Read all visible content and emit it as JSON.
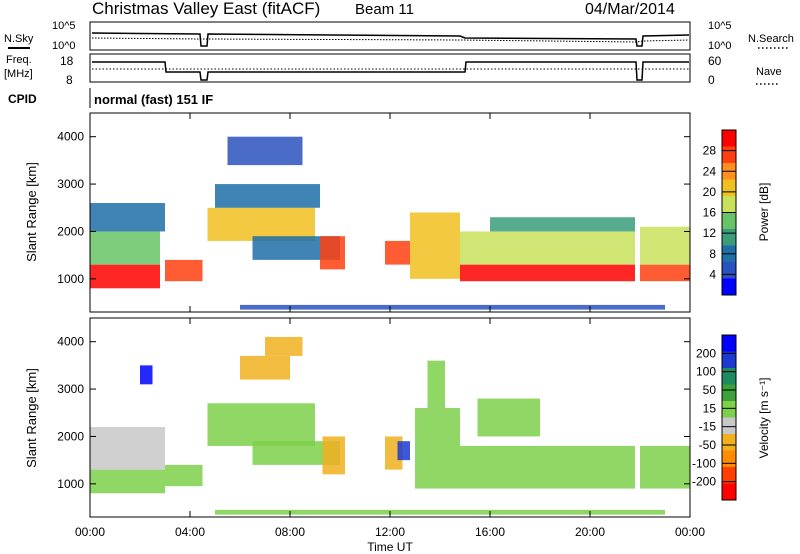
{
  "header": {
    "station": "Christmas Valley East (fitACF)",
    "beam": "Beam 11",
    "date": "04/Mar/2014"
  },
  "noise_panel": {
    "left_label": "N.Sky",
    "right_label": "N.Search",
    "left_ticks": [
      "10^5",
      "10^0"
    ],
    "right_ticks": [
      "10^5",
      "10^0"
    ]
  },
  "freq_panel": {
    "left_label_1": "Freq.",
    "left_label_2": "[MHz]",
    "right_label": "Nave",
    "left_ticks": [
      "18",
      "8"
    ],
    "right_ticks": [
      "60",
      "0"
    ]
  },
  "cpid": {
    "label": "CPID",
    "value": "normal (fast) 151 IF"
  },
  "colors": {
    "power_scale": [
      "#0000ff",
      "#2a52be",
      "#1e6fa8",
      "#3a9c7a",
      "#66c466",
      "#c8e05a",
      "#f0c020",
      "#ff9020",
      "#ff4010",
      "#ff0000"
    ],
    "velocity_scale": [
      "#0000ff",
      "#1a3ad0",
      "#1e8a60",
      "#3ca03c",
      "#7cd04a",
      "#c8c8c8",
      "#f0b020",
      "#ff8c00",
      "#ff4000",
      "#ff0000"
    ]
  },
  "chart_data": [
    {
      "type": "heatmap",
      "panel": "power",
      "ylabel": "Slant Range [km]",
      "xlabel": "Time UT",
      "x_ticks": [
        "00:00",
        "04:00",
        "08:00",
        "12:00",
        "16:00",
        "20:00",
        "00:00"
      ],
      "y_ticks": [
        "1000",
        "2000",
        "3000",
        "4000"
      ],
      "ylim": [
        300,
        4500
      ],
      "xlim": [
        0,
        24
      ],
      "colorbar": {
        "label": "Power [dB]",
        "ticks": [
          "4",
          "8",
          "12",
          "16",
          "20",
          "24",
          "28"
        ],
        "range": [
          0,
          32
        ]
      },
      "regions": [
        {
          "t0": 0.0,
          "t1": 2.8,
          "r0": 800,
          "r1": 1300,
          "v": 29
        },
        {
          "t0": 0.0,
          "t1": 2.8,
          "r0": 1300,
          "r1": 2000,
          "v": 14
        },
        {
          "t0": 0.0,
          "t1": 3.0,
          "r0": 2000,
          "r1": 2600,
          "v": 7
        },
        {
          "t0": 3.0,
          "t1": 4.5,
          "r0": 950,
          "r1": 1400,
          "v": 27
        },
        {
          "t0": 4.7,
          "t1": 9.0,
          "r0": 1800,
          "r1": 2500,
          "v": 22
        },
        {
          "t0": 5.0,
          "t1": 9.2,
          "r0": 2500,
          "r1": 3000,
          "v": 8
        },
        {
          "t0": 5.5,
          "t1": 8.5,
          "r0": 3400,
          "r1": 4000,
          "v": 6
        },
        {
          "t0": 6.5,
          "t1": 10.0,
          "r0": 1400,
          "r1": 1900,
          "v": 8
        },
        {
          "t0": 9.2,
          "t1": 10.2,
          "r0": 1200,
          "r1": 1900,
          "v": 26
        },
        {
          "t0": 11.8,
          "t1": 12.8,
          "r0": 1300,
          "r1": 1800,
          "v": 26
        },
        {
          "t0": 12.8,
          "t1": 14.8,
          "r0": 1000,
          "r1": 2400,
          "v": 20
        },
        {
          "t0": 14.8,
          "t1": 21.8,
          "r0": 950,
          "r1": 1300,
          "v": 30
        },
        {
          "t0": 14.8,
          "t1": 21.8,
          "r0": 1300,
          "r1": 2000,
          "v": 18
        },
        {
          "t0": 16.0,
          "t1": 21.8,
          "r0": 2000,
          "r1": 2300,
          "v": 10
        },
        {
          "t0": 22.0,
          "t1": 24.0,
          "r0": 950,
          "r1": 1300,
          "v": 28
        },
        {
          "t0": 22.0,
          "t1": 24.0,
          "r0": 1300,
          "r1": 2100,
          "v": 16
        },
        {
          "t0": 6.0,
          "t1": 23.0,
          "r0": 350,
          "r1": 450,
          "v": 5
        }
      ]
    },
    {
      "type": "heatmap",
      "panel": "velocity",
      "ylabel": "Slant Range [km]",
      "xlabel": "Time UT",
      "x_ticks": [
        "00:00",
        "04:00",
        "08:00",
        "12:00",
        "16:00",
        "20:00",
        "00:00"
      ],
      "y_ticks": [
        "1000",
        "2000",
        "3000",
        "4000"
      ],
      "ylim": [
        300,
        4500
      ],
      "xlim": [
        0,
        24
      ],
      "colorbar": {
        "label": "Velocity [m s⁻¹]",
        "ticks": [
          "200",
          "100",
          "50",
          "15",
          "-15",
          "-50",
          "-100",
          "-200"
        ],
        "range": [
          -250,
          250
        ]
      },
      "regions": [
        {
          "t0": 0.0,
          "t1": 3.0,
          "r0": 800,
          "r1": 1300,
          "v": 0
        },
        {
          "t0": 0.0,
          "t1": 3.0,
          "r0": 1300,
          "r1": 2200,
          "v": -30
        },
        {
          "t0": 3.0,
          "t1": 4.5,
          "r0": 950,
          "r1": 1400,
          "v": 0
        },
        {
          "t0": 4.7,
          "t1": 9.0,
          "r0": 1800,
          "r1": 2700,
          "v": 0
        },
        {
          "t0": 6.0,
          "t1": 8.0,
          "r0": 3200,
          "r1": 3700,
          "v": -80
        },
        {
          "t0": 7.0,
          "t1": 8.5,
          "r0": 3700,
          "r1": 4100,
          "v": -70
        },
        {
          "t0": 6.5,
          "t1": 10.0,
          "r0": 1400,
          "r1": 1900,
          "v": 40
        },
        {
          "t0": 9.3,
          "t1": 10.2,
          "r0": 1200,
          "r1": 2000,
          "v": -60
        },
        {
          "t0": 11.8,
          "t1": 12.5,
          "r0": 1300,
          "r1": 2000,
          "v": -70
        },
        {
          "t0": 12.3,
          "t1": 12.8,
          "r0": 1500,
          "r1": 1900,
          "v": 150
        },
        {
          "t0": 13.0,
          "t1": 14.8,
          "r0": 900,
          "r1": 2600,
          "v": 35
        },
        {
          "t0": 13.5,
          "t1": 14.2,
          "r0": 2600,
          "r1": 3600,
          "v": 40
        },
        {
          "t0": 14.8,
          "t1": 21.8,
          "r0": 900,
          "r1": 1800,
          "v": 0
        },
        {
          "t0": 15.5,
          "t1": 18.0,
          "r0": 2000,
          "r1": 2800,
          "v": 0
        },
        {
          "t0": 22.0,
          "t1": 24.0,
          "r0": 900,
          "r1": 1800,
          "v": 0
        },
        {
          "t0": 2.0,
          "t1": 2.5,
          "r0": 3100,
          "r1": 3500,
          "v": 220
        },
        {
          "t0": 5.0,
          "t1": 23.0,
          "r0": 350,
          "r1": 450,
          "v": 20
        }
      ]
    }
  ]
}
